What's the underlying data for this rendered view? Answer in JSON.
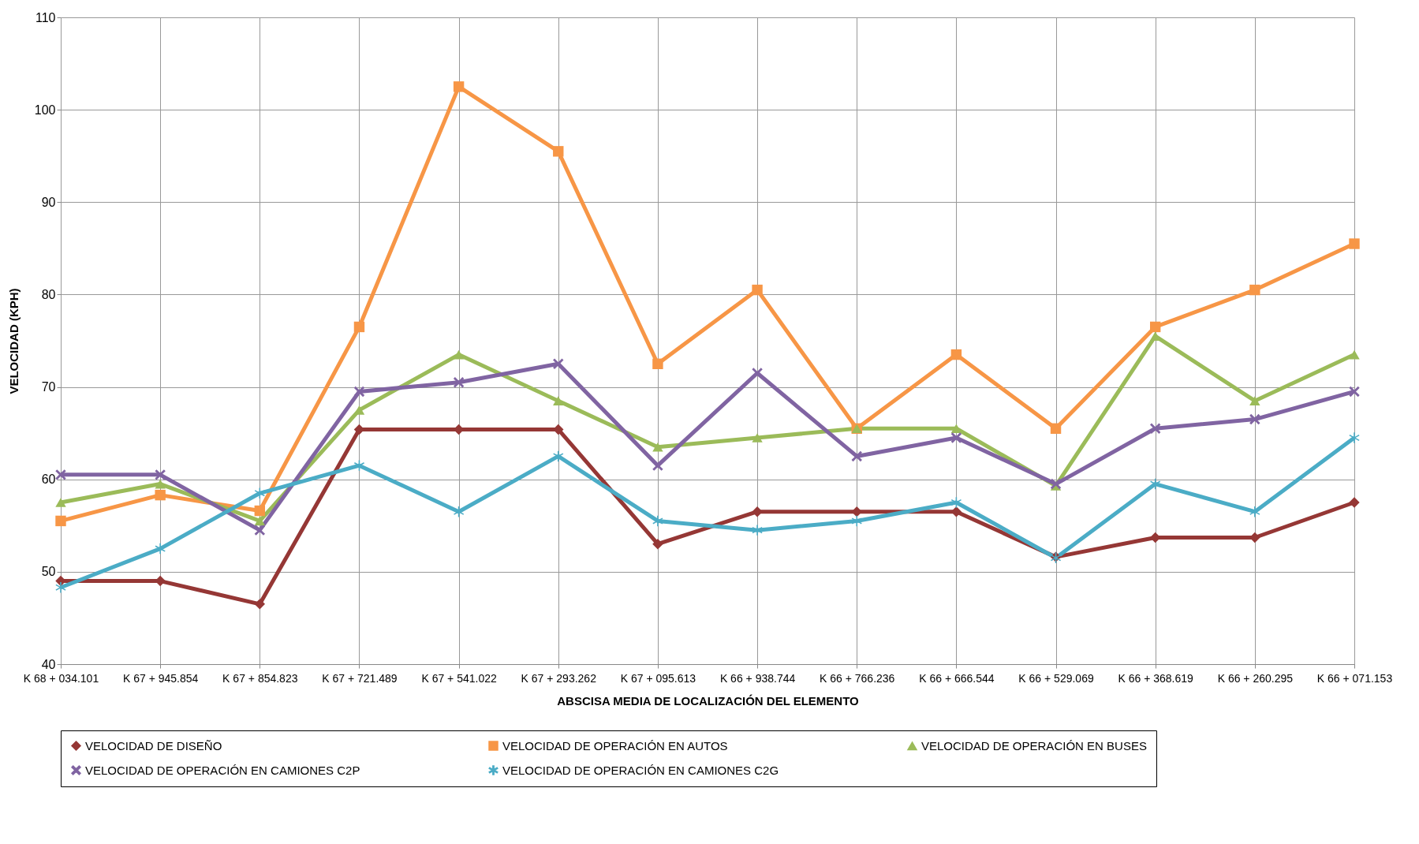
{
  "chart_data": {
    "type": "line",
    "xlabel": "ABSCISA MEDIA DE LOCALIZACIÓN DEL ELEMENTO",
    "ylabel": "VELOCIDAD (KPH)",
    "categories": [
      "K 68 + 034.101",
      "K 67 + 945.854",
      "K 67 + 854.823",
      "K 67 + 721.489",
      "K 67 + 541.022",
      "K 67 + 293.262",
      "K 67 + 095.613",
      "K 66 + 938.744",
      "K 66 + 766.236",
      "K 66 + 666.544",
      "K 66 + 529.069",
      "K 66 + 368.619",
      "K 66 + 260.295",
      "K 66 + 071.153"
    ],
    "series": [
      {
        "name": "VELOCIDAD DE DISEÑO",
        "color": "#953735",
        "marker": "diamond",
        "values": [
          49,
          49,
          46.5,
          65.4,
          65.4,
          65.4,
          53,
          56.5,
          56.5,
          56.5,
          51.6,
          53.7,
          53.7,
          57.5
        ]
      },
      {
        "name": "VELOCIDAD DE OPERACIÓN EN AUTOS",
        "color": "#f79646",
        "marker": "square",
        "values": [
          55.5,
          58.3,
          56.6,
          76.5,
          102.5,
          95.5,
          72.5,
          80.5,
          65.5,
          73.5,
          65.5,
          76.5,
          80.5,
          85.5
        ]
      },
      {
        "name": "VELOCIDAD DE OPERACIÓN EN BUSES",
        "color": "#9bbb59",
        "marker": "triangle",
        "values": [
          57.5,
          59.5,
          55.5,
          67.5,
          73.5,
          68.5,
          63.5,
          64.5,
          65.5,
          65.5,
          59.3,
          75.5,
          68.5,
          73.5
        ]
      },
      {
        "name": "VELOCIDAD DE OPERACIÓN EN CAMIONES C2P",
        "color": "#8064a2",
        "marker": "cross",
        "values": [
          60.5,
          60.5,
          54.5,
          69.5,
          70.5,
          72.5,
          61.5,
          71.5,
          62.5,
          64.5,
          59.5,
          65.5,
          66.5,
          69.5
        ]
      },
      {
        "name": "VELOCIDAD DE OPERACIÓN EN CAMIONES C2G",
        "color": "#4bacc6",
        "marker": "star",
        "values": [
          48.3,
          52.5,
          58.5,
          61.5,
          56.5,
          62.5,
          55.5,
          54.5,
          55.5,
          57.5,
          51.5,
          59.5,
          56.5,
          64.5
        ]
      }
    ],
    "ylim": [
      40,
      110
    ],
    "yticks": [
      40,
      50,
      60,
      70,
      80,
      90,
      100,
      110
    ],
    "grid": true,
    "legend": "bottom"
  }
}
